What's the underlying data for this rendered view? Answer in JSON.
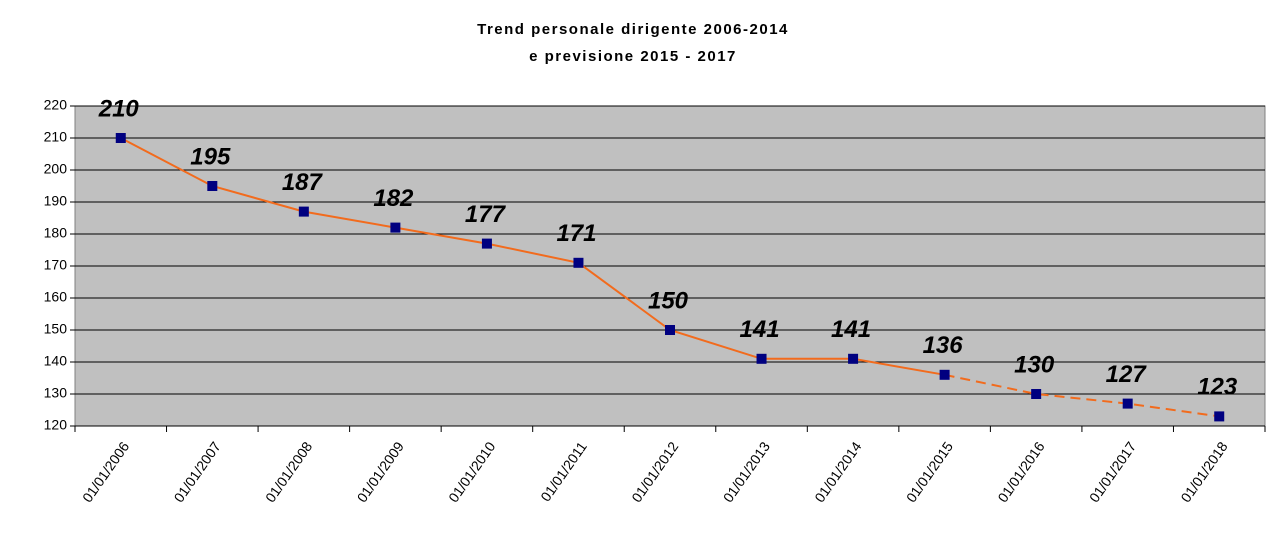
{
  "chart_data": {
    "type": "line",
    "title": "Trend personale dirigente  2006-2014",
    "subtitle": "e previsione 2015 - 2017",
    "categories": [
      "01/01/2006",
      "01/01/2007",
      "01/01/2008",
      "01/01/2009",
      "01/01/2010",
      "01/01/2011",
      "01/01/2012",
      "01/01/2013",
      "01/01/2014",
      "01/01/2015",
      "01/01/2016",
      "01/01/2017",
      "01/01/2018"
    ],
    "values": [
      210,
      195,
      187,
      182,
      177,
      171,
      150,
      141,
      141,
      136,
      130,
      127,
      123
    ],
    "color": "#f26b1d",
    "marker_color": "#000080",
    "plot_background": "#c0c0c0",
    "dashed_from_category": "01/01/2015",
    "ylim": [
      120,
      220
    ],
    "yticks": [
      120,
      130,
      140,
      150,
      160,
      170,
      180,
      190,
      200,
      210,
      220
    ],
    "grid": true
  }
}
